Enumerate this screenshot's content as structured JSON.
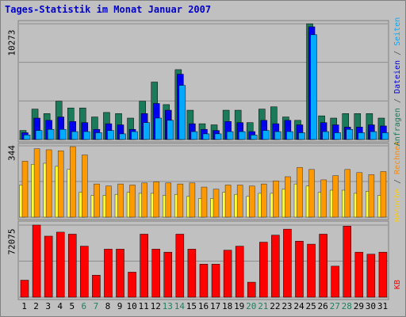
{
  "chart_data": {
    "type": "bar",
    "title": "Tages-Statistik im Monat Januar 2007",
    "categories": [
      "1",
      "2",
      "3",
      "4",
      "5",
      "6",
      "7",
      "8",
      "9",
      "10",
      "11",
      "12",
      "13",
      "14",
      "15",
      "16",
      "17",
      "18",
      "19",
      "20",
      "21",
      "22",
      "23",
      "24",
      "25",
      "26",
      "27",
      "28",
      "29",
      "30",
      "31"
    ],
    "weekend_days": [
      "6",
      "7",
      "13",
      "14",
      "20",
      "21",
      "27",
      "28"
    ],
    "panels": [
      {
        "name": "requests",
        "max_label": "10273",
        "ylim": [
          0,
          10273
        ],
        "legend": [
          "Anfragen",
          "Dateien",
          "Seiten"
        ],
        "series": [
          {
            "name": "Anfragen",
            "color": "#1a7a5a",
            "values": [
              800,
              2700,
              2300,
              3400,
              2800,
              2800,
              2000,
              2400,
              2300,
              1900,
              3400,
              5100,
              3100,
              6200,
              2600,
              1400,
              1300,
              2600,
              2600,
              1500,
              2700,
              2900,
              2000,
              1700,
              10273,
              2100,
              1900,
              2300,
              2300,
              2300,
              1900
            ]
          },
          {
            "name": "Dateien",
            "color": "#0000ee",
            "values": [
              600,
              1900,
              1700,
              2000,
              1600,
              1500,
              900,
              1400,
              1300,
              900,
              2300,
              3200,
              2600,
              5800,
              1400,
              900,
              800,
              1600,
              1500,
              700,
              1700,
              1400,
              1700,
              1300,
              10000,
              1500,
              1300,
              1100,
              1100,
              1300,
              1200
            ]
          },
          {
            "name": "Seiten",
            "color": "#00aaff",
            "values": [
              400,
              800,
              900,
              900,
              700,
              700,
              600,
              800,
              500,
              700,
              1500,
              1900,
              1700,
              4800,
              700,
              500,
              500,
              700,
              700,
              400,
              800,
              700,
              700,
              600,
              9300,
              700,
              600,
              900,
              600,
              700,
              600
            ]
          }
        ]
      },
      {
        "name": "visits",
        "max_label": "344",
        "ylim": [
          0,
          344
        ],
        "legend": [
          "Besuche",
          "Rechner"
        ],
        "series": [
          {
            "name": "Besuche",
            "color": "#ffff33",
            "values": [
              155,
              255,
              260,
              245,
              230,
              120,
              105,
              105,
              110,
              120,
              115,
              115,
              105,
              110,
              100,
              90,
              90,
              120,
              110,
              100,
              115,
              115,
              135,
              160,
              150,
              120,
              130,
              130,
              115,
              125,
              105
            ]
          },
          {
            "name": "Rechner",
            "color": "#ff9900",
            "values": [
              270,
              330,
              325,
              320,
              340,
              300,
              160,
              150,
              160,
              155,
              165,
              170,
              165,
              160,
              165,
              145,
              135,
              155,
              155,
              150,
              160,
              175,
              195,
              240,
              230,
              180,
              200,
              230,
              215,
              205,
              220
            ]
          }
        ]
      },
      {
        "name": "kb",
        "max_label": "72075",
        "ylim": [
          0,
          72075
        ],
        "legend": [
          "KB"
        ],
        "series": [
          {
            "name": "KB",
            "color": "#ff0000",
            "values": [
              17000,
              72075,
              61000,
              65000,
              63000,
              51000,
              22000,
              48000,
              48000,
              25000,
              63000,
              48000,
              45000,
              63000,
              48000,
              33000,
              33000,
              47000,
              51000,
              15000,
              55000,
              62000,
              68000,
              56000,
              53000,
              63000,
              31000,
              71000,
              45000,
              43000,
              45000
            ]
          }
        ]
      }
    ]
  }
}
